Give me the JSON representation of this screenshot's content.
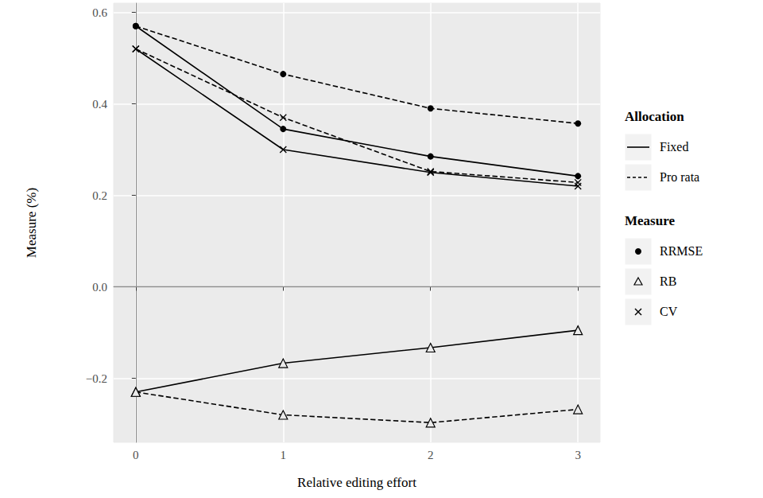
{
  "chart_data": {
    "type": "line",
    "x_label": "Relative editing effort",
    "y_label": "Measure (%)",
    "x": [
      0,
      1,
      2,
      3
    ],
    "xlim": [
      -0.15,
      3.15
    ],
    "xticks": [
      0,
      1,
      2,
      3
    ],
    "ylim": [
      -0.34,
      0.62
    ],
    "yticks": [
      {
        "value": -0.2,
        "label": "−0.2"
      },
      {
        "value": 0,
        "label": "0.0"
      },
      0.2,
      0.4,
      0.6
    ],
    "hline": 0,
    "grid": true,
    "legend_groups": [
      {
        "title": "Allocation",
        "entries": [
          {
            "label": "Fixed",
            "line_style": "solid"
          },
          {
            "label": "Pro rata",
            "line_style": "dashed"
          }
        ]
      },
      {
        "title": "Measure",
        "entries": [
          {
            "label": "RRMSE",
            "marker": "circle"
          },
          {
            "label": "RB",
            "marker": "triangle_open"
          },
          {
            "label": "CV",
            "marker": "cross"
          }
        ]
      }
    ],
    "series": [
      {
        "color": "#000000",
        "line_style": "solid",
        "marker": "circle",
        "values": [
          0.57,
          0.345,
          0.285,
          0.242
        ]
      },
      {
        "color": "#000000",
        "line_style": "solid",
        "marker": "cross",
        "values": [
          0.52,
          0.3,
          0.25,
          0.22
        ]
      },
      {
        "color": "#000000",
        "line_style": "solid",
        "marker": "triangle_open",
        "values": [
          -0.23,
          -0.167,
          -0.133,
          -0.095
        ]
      },
      {
        "color": "#000000",
        "line_style": "dashed",
        "marker": "circle",
        "values": [
          0.57,
          0.465,
          0.39,
          0.357
        ]
      },
      {
        "color": "#000000",
        "line_style": "dashed",
        "marker": "cross",
        "values": [
          0.52,
          0.37,
          0.252,
          0.228
        ]
      },
      {
        "color": "#000000",
        "line_style": "dashed",
        "marker": "triangle_open",
        "values": [
          -0.23,
          -0.28,
          -0.297,
          -0.268
        ]
      }
    ]
  }
}
